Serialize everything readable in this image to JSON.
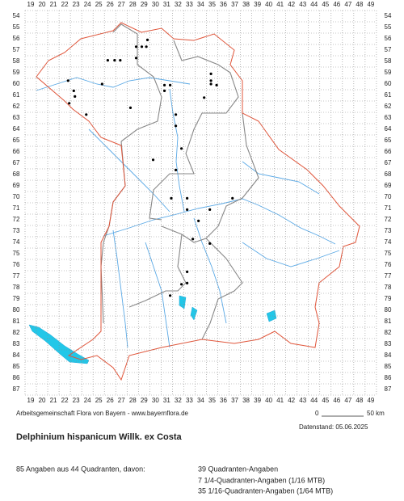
{
  "map": {
    "columns": [
      19,
      20,
      21,
      22,
      23,
      24,
      25,
      26,
      27,
      28,
      29,
      30,
      31,
      32,
      33,
      34,
      35,
      36,
      37,
      38,
      39,
      40,
      41,
      42,
      43,
      44,
      45,
      46,
      47,
      48,
      49
    ],
    "rows": [
      54,
      55,
      56,
      57,
      58,
      59,
      60,
      61,
      62,
      63,
      64,
      65,
      66,
      67,
      68,
      69,
      70,
      71,
      72,
      73,
      74,
      75,
      76,
      77,
      78,
      79,
      80,
      81,
      82,
      83,
      84,
      85,
      86,
      87
    ],
    "points": [
      [
        29.3,
        56.1
      ],
      [
        28.3,
        56.7
      ],
      [
        28.8,
        56.7
      ],
      [
        29.2,
        56.7
      ],
      [
        28.3,
        57.7
      ],
      [
        25.8,
        57.9
      ],
      [
        26.4,
        57.9
      ],
      [
        26.9,
        57.9
      ],
      [
        34.9,
        59.1
      ],
      [
        22.3,
        59.7
      ],
      [
        25.3,
        60.0
      ],
      [
        34.9,
        59.7
      ],
      [
        34.9,
        60.0
      ],
      [
        35.4,
        60.1
      ],
      [
        30.8,
        60.1
      ],
      [
        31.3,
        60.1
      ],
      [
        22.8,
        60.6
      ],
      [
        30.8,
        60.6
      ],
      [
        22.9,
        61.1
      ],
      [
        34.3,
        61.2
      ],
      [
        22.4,
        61.7
      ],
      [
        27.8,
        62.1
      ],
      [
        23.9,
        62.7
      ],
      [
        31.8,
        62.7
      ],
      [
        31.8,
        63.7
      ],
      [
        32.3,
        65.7
      ],
      [
        29.8,
        66.7
      ],
      [
        31.8,
        67.6
      ],
      [
        31.4,
        70.1
      ],
      [
        32.8,
        70.1
      ],
      [
        36.8,
        70.1
      ],
      [
        32.8,
        71.1
      ],
      [
        34.8,
        71.1
      ],
      [
        33.8,
        72.1
      ],
      [
        33.3,
        73.7
      ],
      [
        34.8,
        74.1
      ],
      [
        32.8,
        76.6
      ],
      [
        32.8,
        77.6
      ],
      [
        32.3,
        77.7
      ],
      [
        31.3,
        78.7
      ]
    ]
  },
  "credit": "Arbeitsgemeinschaft Flora von Bayern - www.bayernflora.de",
  "scale": {
    "start": "0",
    "end": "50 km"
  },
  "date": "Datenstand: 05.06.2025",
  "title": "Delphinium hispanicum Willk. ex Costa",
  "summary": "85 Angaben aus 44 Quadranten, davon:",
  "breakdown": [
    "39 Quadranten-Angaben",
    "7 1/4-Quadranten-Angaben (1/16 MTB)",
    "35 1/16-Quadranten-Angaben (1/64 MTB)"
  ]
}
